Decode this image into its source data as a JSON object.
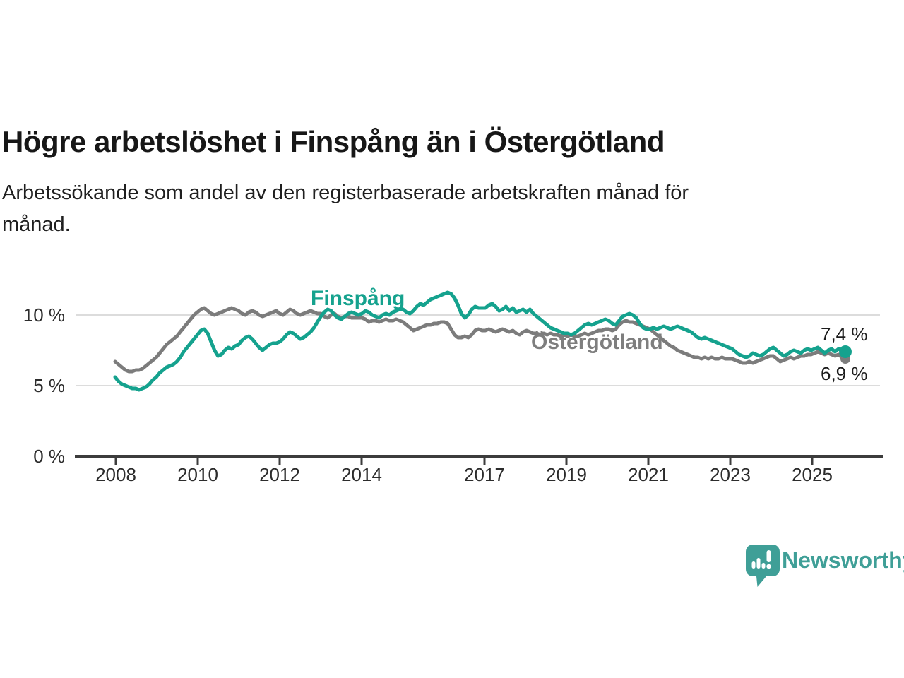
{
  "header": {
    "title": "Högre arbetslöshet i Finspång än i Östergötland",
    "subtitle_lines": [
      "Arbetssökande som andel av den registerbaserade arbetskraften månad för",
      "månad."
    ]
  },
  "chart_data": {
    "type": "line",
    "title": "Högre arbetslöshet i Finspång än i Östergötland",
    "subtitle": "Arbetssökande som andel av den registerbaserade arbetskraften månad för månad.",
    "x_unit": "month",
    "x_range": [
      "2008-01",
      "2025-10"
    ],
    "x_tick_labels": [
      "2008",
      "2010",
      "2012",
      "2014",
      "2017",
      "2019",
      "2021",
      "2023",
      "2025"
    ],
    "y_tick_labels": [
      "10 %",
      "5 %",
      "0 %"
    ],
    "y_ticks": [
      10,
      5,
      0
    ],
    "ylim": [
      0,
      13.2
    ],
    "grid": "horizontal",
    "legend_position": "inline-labels",
    "series": [
      {
        "name": "Östergötland",
        "color": "#7c7c7c",
        "end_label": "6,9 %",
        "end_value": 6.9,
        "values": [
          6.7,
          6.5,
          6.3,
          6.1,
          6.0,
          6.0,
          6.1,
          6.1,
          6.2,
          6.4,
          6.6,
          6.8,
          7.0,
          7.3,
          7.6,
          7.9,
          8.1,
          8.3,
          8.5,
          8.8,
          9.1,
          9.4,
          9.7,
          10.0,
          10.2,
          10.4,
          10.5,
          10.3,
          10.1,
          10.0,
          10.1,
          10.2,
          10.3,
          10.4,
          10.5,
          10.4,
          10.3,
          10.1,
          10.0,
          10.2,
          10.3,
          10.2,
          10.0,
          9.9,
          10.0,
          10.1,
          10.2,
          10.3,
          10.1,
          10.0,
          10.2,
          10.4,
          10.3,
          10.1,
          10.0,
          10.1,
          10.2,
          10.3,
          10.2,
          10.1,
          10.1,
          9.9,
          9.8,
          10.0,
          10.1,
          9.9,
          9.8,
          9.9,
          9.9,
          9.8,
          9.8,
          9.8,
          9.8,
          9.7,
          9.5,
          9.6,
          9.6,
          9.5,
          9.6,
          9.7,
          9.6,
          9.6,
          9.7,
          9.6,
          9.5,
          9.3,
          9.1,
          8.9,
          9.0,
          9.1,
          9.2,
          9.3,
          9.3,
          9.4,
          9.4,
          9.5,
          9.5,
          9.4,
          9.0,
          8.6,
          8.4,
          8.4,
          8.5,
          8.4,
          8.6,
          8.9,
          9.0,
          8.9,
          8.9,
          9.0,
          8.9,
          8.8,
          8.9,
          9.0,
          8.9,
          8.8,
          8.9,
          8.7,
          8.6,
          8.8,
          8.9,
          8.8,
          8.7,
          8.7,
          8.6,
          8.7,
          8.6,
          8.7,
          8.6,
          8.6,
          8.5,
          8.6,
          8.5,
          8.6,
          8.5,
          8.5,
          8.6,
          8.7,
          8.6,
          8.7,
          8.8,
          8.9,
          8.9,
          9.0,
          9.0,
          8.9,
          9.0,
          9.3,
          9.5,
          9.6,
          9.5,
          9.5,
          9.4,
          9.3,
          9.2,
          9.1,
          9.0,
          8.8,
          8.6,
          8.4,
          8.2,
          8.0,
          7.8,
          7.7,
          7.5,
          7.4,
          7.3,
          7.2,
          7.1,
          7.0,
          7.0,
          6.9,
          7.0,
          6.9,
          7.0,
          6.9,
          6.9,
          7.0,
          6.9,
          6.9,
          6.9,
          6.8,
          6.7,
          6.6,
          6.6,
          6.7,
          6.6,
          6.7,
          6.8,
          6.9,
          7.0,
          7.1,
          7.1,
          6.9,
          6.7,
          6.8,
          6.9,
          7.0,
          6.9,
          7.0,
          7.1,
          7.1,
          7.2,
          7.2,
          7.3,
          7.4,
          7.3,
          7.2,
          7.3,
          7.2,
          7.1,
          7.2,
          7.0,
          6.9
        ]
      },
      {
        "name": "Finspång",
        "color": "#15a28e",
        "end_label": "7,4 %",
        "end_value": 7.4,
        "values": [
          5.6,
          5.3,
          5.1,
          5.0,
          4.9,
          4.8,
          4.8,
          4.7,
          4.8,
          4.9,
          5.1,
          5.4,
          5.6,
          5.9,
          6.1,
          6.3,
          6.4,
          6.5,
          6.7,
          7.0,
          7.4,
          7.7,
          8.0,
          8.3,
          8.6,
          8.9,
          9.0,
          8.7,
          8.1,
          7.5,
          7.1,
          7.2,
          7.5,
          7.7,
          7.6,
          7.8,
          7.9,
          8.2,
          8.4,
          8.5,
          8.3,
          8.0,
          7.7,
          7.5,
          7.7,
          7.9,
          8.0,
          8.0,
          8.1,
          8.3,
          8.6,
          8.8,
          8.7,
          8.5,
          8.3,
          8.4,
          8.6,
          8.8,
          9.1,
          9.5,
          9.9,
          10.2,
          10.4,
          10.3,
          10.0,
          9.8,
          9.7,
          9.9,
          10.1,
          10.2,
          10.1,
          10.0,
          10.1,
          10.3,
          10.2,
          10.0,
          9.9,
          9.8,
          10.0,
          10.1,
          10.0,
          10.2,
          10.3,
          10.4,
          10.4,
          10.2,
          10.1,
          10.3,
          10.6,
          10.8,
          10.7,
          10.9,
          11.1,
          11.2,
          11.3,
          11.4,
          11.5,
          11.6,
          11.5,
          11.2,
          10.7,
          10.1,
          9.8,
          10.0,
          10.4,
          10.6,
          10.5,
          10.5,
          10.5,
          10.7,
          10.8,
          10.6,
          10.3,
          10.4,
          10.6,
          10.3,
          10.5,
          10.2,
          10.3,
          10.4,
          10.2,
          10.4,
          10.1,
          9.9,
          9.7,
          9.5,
          9.3,
          9.1,
          9.0,
          8.9,
          8.8,
          8.7,
          8.7,
          8.6,
          8.7,
          8.9,
          9.1,
          9.3,
          9.4,
          9.3,
          9.4,
          9.5,
          9.6,
          9.7,
          9.6,
          9.4,
          9.3,
          9.6,
          9.9,
          10.0,
          10.1,
          10.0,
          9.8,
          9.4,
          9.1,
          9.0,
          9.0,
          9.1,
          9.0,
          9.1,
          9.2,
          9.1,
          9.0,
          9.1,
          9.2,
          9.1,
          9.0,
          8.9,
          8.8,
          8.6,
          8.4,
          8.3,
          8.4,
          8.3,
          8.2,
          8.1,
          8.0,
          7.9,
          7.8,
          7.7,
          7.6,
          7.4,
          7.2,
          7.1,
          7.0,
          7.1,
          7.3,
          7.2,
          7.1,
          7.2,
          7.4,
          7.6,
          7.7,
          7.5,
          7.3,
          7.1,
          7.2,
          7.4,
          7.5,
          7.4,
          7.3,
          7.5,
          7.6,
          7.5,
          7.6,
          7.7,
          7.5,
          7.3,
          7.5,
          7.6,
          7.4,
          7.6,
          7.5,
          7.4
        ]
      }
    ]
  },
  "footer": {
    "brand": "Newsworthy"
  },
  "colors": {
    "finspang_line": "#15a28e",
    "ostergotland_line": "#7c7c7c",
    "ostergotland_label": "#7e7e7e",
    "grid_line": "#dcdcdc",
    "axis_line": "#3c3c3c",
    "tick_text": "#2c2c2c",
    "title_text": "#171717",
    "value_label_text": "#1c1c1c",
    "brand_teal": "#3f9f97",
    "background": "#ffffff"
  }
}
